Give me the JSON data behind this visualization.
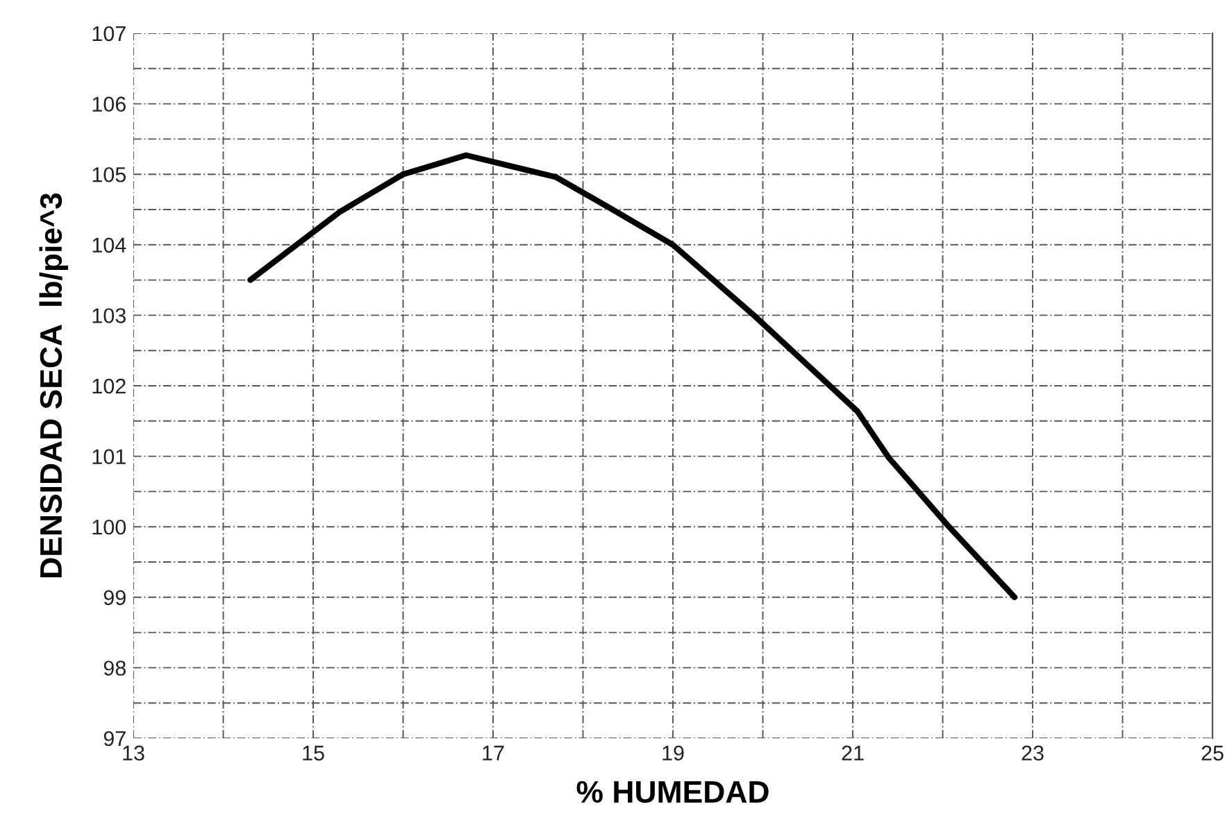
{
  "chart_data": {
    "type": "line",
    "xlabel": "% HUMEDAD",
    "ylabel": "DENSIDAD SECA  lb/pie^3",
    "series": [
      {
        "color": "#000000",
        "x": [
          14.3,
          15.3,
          16.0,
          16.7,
          17.7,
          18.3,
          19.0,
          19.9,
          21.05,
          21.4,
          22.07,
          22.8
        ],
        "values": [
          103.5,
          104.47,
          105.0,
          105.27,
          104.96,
          104.52,
          104.0,
          103.0,
          101.64,
          100.98,
          100.0,
          99.0
        ]
      }
    ],
    "xlim": [
      13,
      25
    ],
    "xticks": [
      13,
      15,
      17,
      19,
      21,
      23,
      25
    ],
    "ylim": [
      97,
      107
    ],
    "yticks": [
      97,
      98,
      99,
      100,
      101,
      102,
      103,
      104,
      105,
      106,
      107
    ],
    "grid": true,
    "marker": "none",
    "line_style": "solid",
    "legend": false
  }
}
